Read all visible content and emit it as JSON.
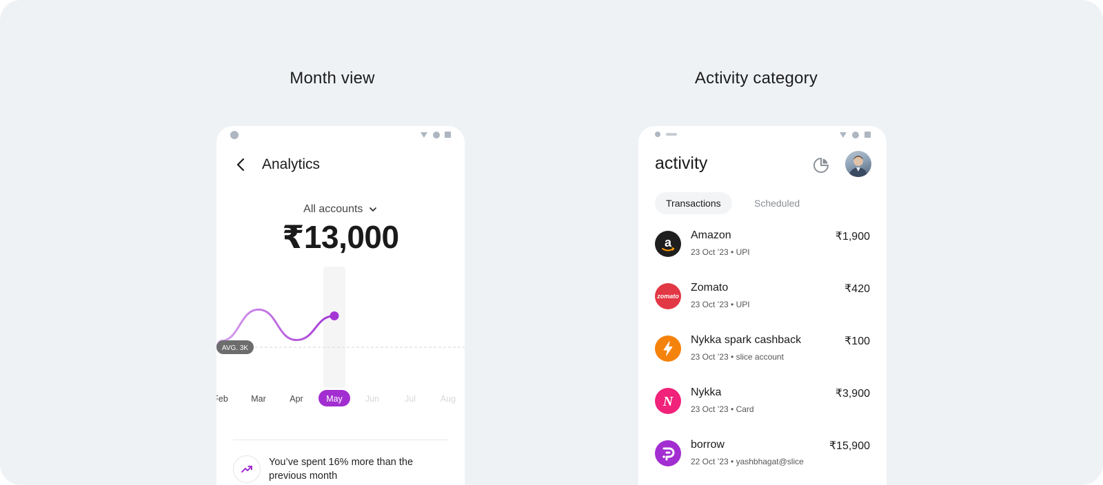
{
  "sections": {
    "left_title": "Month view",
    "right_title": "Activity category"
  },
  "analytics": {
    "title": "Analytics",
    "account_selector": "All accounts",
    "total_amount": "₹13,000",
    "avg_label": "AVG. 3K",
    "insight": "You’ve spent 16% more than the previous month"
  },
  "chart_data": {
    "type": "line",
    "categories": [
      "Feb",
      "Mar",
      "Apr",
      "May",
      "Jun",
      "Jul",
      "Aug"
    ],
    "selected": "May",
    "values": [
      3.7,
      7.2,
      3.8,
      6.5,
      null,
      null,
      null
    ],
    "average": 3,
    "ylim": [
      0,
      10
    ],
    "colors": {
      "line": "#a436d6",
      "line_faded": "#d9a4ee",
      "selected_pill": "#a22ed1",
      "avg_pill": "#6d6d6d"
    }
  },
  "activity": {
    "title": "activity",
    "tabs": [
      {
        "label": "Transactions",
        "active": true
      },
      {
        "label": "Scheduled",
        "active": false
      }
    ],
    "transactions": [
      {
        "name": "Amazon",
        "meta": "23 Oct ’23 • UPI",
        "amount": "₹1,900",
        "logo_text": "a",
        "color": "#1f1f1f",
        "icon": "amazon-logo-icon"
      },
      {
        "name": "Zomato",
        "meta": "23 Oct ’23 • UPI",
        "amount": "₹420",
        "logo_text": "zomato",
        "color": "#e23744",
        "icon": "zomato-logo-icon"
      },
      {
        "name": "Nykka spark cashback",
        "meta": "23 Oct ’23 • slice account",
        "amount": "₹100",
        "logo_text": "",
        "color": "#f5820b",
        "icon": "lightning-icon"
      },
      {
        "name": "Nykka",
        "meta": "23 Oct ’23 • Card",
        "amount": "₹3,900",
        "logo_text": "N",
        "color": "#f0227a",
        "icon": "nykaa-logo-icon"
      },
      {
        "name": "borrow",
        "meta": "22 Oct ’23 • yashbhagat@slice",
        "amount": "₹15,900",
        "logo_text": "",
        "color": "#a22ed1",
        "icon": "borrow-logo-icon"
      }
    ]
  }
}
